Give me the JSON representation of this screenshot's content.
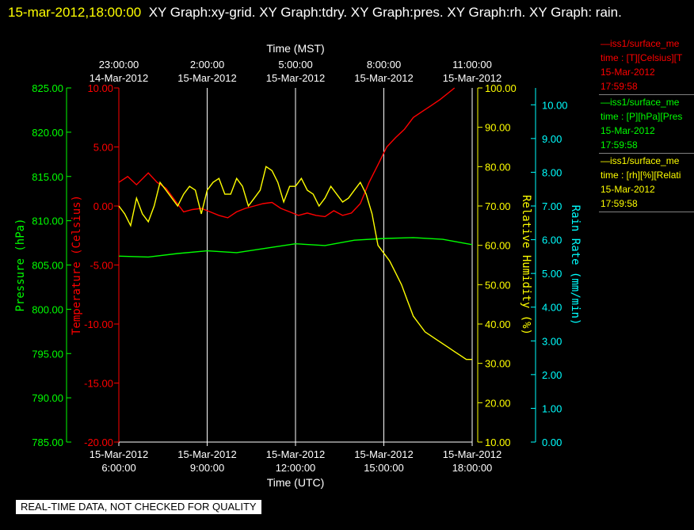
{
  "header": {
    "timestamp": "15-mar-2012,18:00:00",
    "rest": "XY Graph:xy-grid.  XY Graph:tdry.  XY Graph:pres.  XY Graph:rh.  XY Graph: rain."
  },
  "note": "REAL-TIME DATA, NOT CHECKED FOR QUALITY",
  "legend": [
    {
      "line1": "—iss1/surface_me",
      "line2": "time : [T][Celsius][T",
      "line3": "15-Mar-2012",
      "line4": "17:59:58",
      "color": "#ff0000"
    },
    {
      "line1": "—iss1/surface_me",
      "line2": "time : [P][hPa][Pres",
      "line3": "15-Mar-2012",
      "line4": "17:59:58",
      "color": "#00ff00"
    },
    {
      "line1": "—iss1/surface_me",
      "line2": "time : [rh][%][Relati",
      "line3": "15-Mar-2012",
      "line4": "17:59:58",
      "color": "#ffff00"
    }
  ],
  "chart_data": {
    "type": "line",
    "grid": true,
    "x_bottom": {
      "label": "Time (UTC)",
      "ticks": [
        {
          "l1": "15-Mar-2012",
          "l2": "6:00:00"
        },
        {
          "l1": "15-Mar-2012",
          "l2": "9:00:00"
        },
        {
          "l1": "15-Mar-2012",
          "l2": "12:00:00"
        },
        {
          "l1": "15-Mar-2012",
          "l2": "15:00:00"
        },
        {
          "l1": "15-Mar-2012",
          "l2": "18:00:00"
        }
      ]
    },
    "x_top": {
      "label": "Time (MST)",
      "ticks": [
        {
          "l1": "23:00:00",
          "l2": "14-Mar-2012"
        },
        {
          "l1": "2:00:00",
          "l2": "15-Mar-2012"
        },
        {
          "l1": "5:00:00",
          "l2": "15-Mar-2012"
        },
        {
          "l1": "8:00:00",
          "l2": "15-Mar-2012"
        },
        {
          "l1": "11:00:00",
          "l2": "15-Mar-2012"
        }
      ]
    },
    "x_hours_utc": [
      6,
      18
    ],
    "axes": {
      "pressure": {
        "label": "Pressure (hPa)",
        "color": "#00ff00",
        "ylim": [
          785,
          825
        ],
        "ticks": [
          "785.00",
          "790.00",
          "795.00",
          "800.00",
          "805.00",
          "810.00",
          "815.00",
          "820.00",
          "825.00"
        ]
      },
      "temperature": {
        "label": "Temperature (Celsius)",
        "color": "#ff0000",
        "ylim": [
          -20,
          10
        ],
        "ticks": [
          "-20.00",
          "-15.00",
          "-10.00",
          "-5.00",
          "0.00",
          "5.00",
          "10.00"
        ]
      },
      "rh": {
        "label": "Relative Humidity (%)",
        "color": "#ffff00",
        "ylim": [
          10,
          100
        ],
        "ticks": [
          "10.00",
          "20.00",
          "30.00",
          "40.00",
          "50.00",
          "60.00",
          "70.00",
          "80.00",
          "90.00",
          "100.00"
        ]
      },
      "rain": {
        "label": "Rain Rate (mm/min)",
        "color": "#00ffff",
        "ylim": [
          0,
          10.5
        ],
        "ticks": [
          "0.00",
          "1.00",
          "2.00",
          "3.00",
          "4.00",
          "5.00",
          "6.00",
          "7.00",
          "8.00",
          "9.00",
          "10.00"
        ]
      }
    },
    "series": [
      {
        "axis": "temperature",
        "color": "#ff0000",
        "x": [
          6.0,
          6.3,
          6.6,
          7.0,
          7.3,
          7.6,
          7.9,
          8.2,
          8.5,
          8.8,
          9.1,
          9.4,
          9.7,
          10.0,
          10.3,
          10.6,
          10.9,
          11.2,
          11.5,
          11.8,
          12.1,
          12.4,
          12.7,
          13.0,
          13.3,
          13.6,
          13.9,
          14.2,
          14.5,
          14.8,
          15.1,
          15.4,
          15.7,
          16.0,
          16.3,
          16.6,
          16.9,
          17.2,
          17.4
        ],
        "y": [
          2.0,
          2.5,
          1.8,
          2.8,
          2.0,
          1.5,
          0.5,
          -0.5,
          -0.3,
          -0.2,
          -0.5,
          -0.8,
          -1.0,
          -0.5,
          -0.2,
          0.0,
          0.2,
          0.3,
          -0.2,
          -0.5,
          -0.8,
          -0.6,
          -0.8,
          -0.9,
          -0.4,
          -0.8,
          -0.6,
          0.2,
          2.0,
          3.5,
          5.0,
          5.8,
          6.5,
          7.5,
          8.0,
          8.5,
          9.0,
          9.6,
          10.0
        ]
      },
      {
        "axis": "pressure",
        "color": "#00ff00",
        "x": [
          6.0,
          7.0,
          8.0,
          9.0,
          10.0,
          11.0,
          12.0,
          13.0,
          14.0,
          15.0,
          16.0,
          17.0,
          18.0
        ],
        "y": [
          806.0,
          805.9,
          806.3,
          806.6,
          806.4,
          806.9,
          807.4,
          807.2,
          807.8,
          808.0,
          808.1,
          807.9,
          807.3
        ]
      },
      {
        "axis": "rh",
        "color": "#ffff00",
        "x": [
          6.0,
          6.2,
          6.4,
          6.6,
          6.8,
          7.0,
          7.2,
          7.4,
          7.6,
          7.8,
          8.0,
          8.2,
          8.4,
          8.6,
          8.8,
          9.0,
          9.2,
          9.4,
          9.6,
          9.8,
          10.0,
          10.2,
          10.4,
          10.6,
          10.8,
          11.0,
          11.2,
          11.4,
          11.6,
          11.8,
          12.0,
          12.2,
          12.4,
          12.6,
          12.8,
          13.0,
          13.2,
          13.4,
          13.6,
          13.8,
          14.0,
          14.2,
          14.4,
          14.6,
          14.8,
          15.0,
          15.2,
          15.4,
          15.6,
          15.8,
          16.0,
          16.2,
          16.4,
          16.6,
          16.8,
          17.0,
          17.2,
          17.4,
          17.6,
          17.8,
          18.0
        ],
        "y": [
          70,
          68,
          65,
          72,
          68,
          66,
          70,
          76,
          74,
          72,
          70,
          73,
          75,
          74,
          68,
          74,
          76,
          77,
          73,
          73,
          77,
          75,
          70,
          72,
          74,
          80,
          79,
          76,
          71,
          75,
          75,
          77,
          74,
          73,
          70,
          72,
          75,
          73,
          71,
          72,
          74,
          76,
          73,
          68,
          60,
          58,
          56,
          53,
          50,
          46,
          42,
          40,
          38,
          37,
          36,
          35,
          34,
          33,
          32,
          31,
          31
        ]
      }
    ]
  }
}
